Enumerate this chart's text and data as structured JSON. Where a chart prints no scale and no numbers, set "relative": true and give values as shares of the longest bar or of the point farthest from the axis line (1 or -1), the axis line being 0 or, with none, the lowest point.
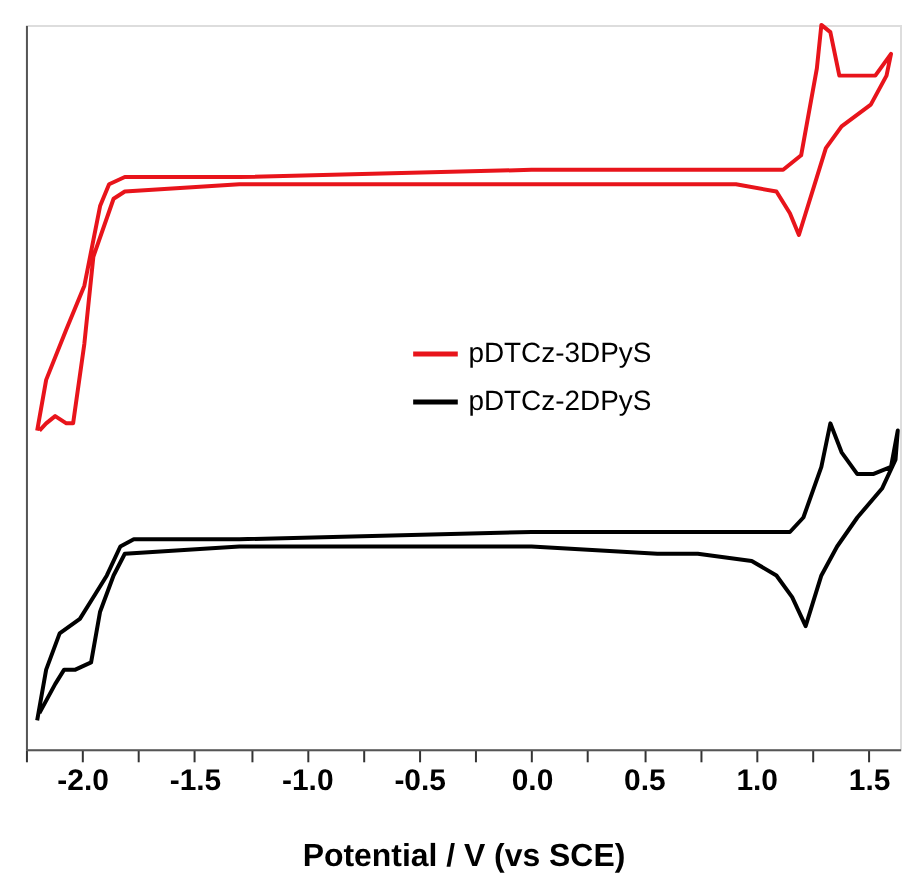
{
  "chart_data": {
    "type": "line",
    "relative": true,
    "xlabel": "Potential / V (vs SCE)",
    "xlim": [
      -2.25,
      1.64
    ],
    "xticks": [
      {
        "value": -2.25,
        "label": null
      },
      {
        "value": -2,
        "label": "-2.0"
      },
      {
        "value": -1.75,
        "label": null
      },
      -1.5,
      {
        "value": -1.25,
        "label": null
      },
      {
        "value": -1,
        "label": "-1.0"
      },
      {
        "value": -0.75,
        "label": null
      },
      -0.5,
      {
        "value": -0.25,
        "label": null
      },
      {
        "value": 0,
        "label": "0.0"
      },
      {
        "value": 0.25,
        "label": null
      },
      0.5,
      {
        "value": 0.75,
        "label": null
      },
      {
        "value": 1,
        "label": "1.0"
      },
      {
        "value": 1.25,
        "label": null
      },
      1.5
    ],
    "legend": "right",
    "grid": false,
    "marker": "none",
    "line_style": "solid",
    "series": [
      {
        "name": "pDTCz-3DPyS",
        "color": "#e8141b",
        "x": [
          -2.2,
          -2.16,
          -2.07,
          -1.99,
          -1.92,
          -1.88,
          -1.81,
          -1.3,
          0.0,
          0.56,
          1.12,
          1.2,
          1.27,
          1.29,
          1.33,
          1.37,
          1.45,
          1.53,
          1.6,
          1.58,
          1.51,
          1.38,
          1.31,
          1.27,
          1.22,
          1.19,
          1.15,
          1.09,
          0.91,
          0.56,
          0.0,
          -1.3,
          -1.81,
          -1.86,
          -1.95,
          -1.99,
          -2.04,
          -2.07,
          -2.12,
          -2.16,
          -2.19
        ],
        "values": [
          0.44,
          0.51,
          0.58,
          0.64,
          0.75,
          0.78,
          0.79,
          0.79,
          0.8,
          0.8,
          0.8,
          0.82,
          0.94,
          1.0,
          0.99,
          0.93,
          0.93,
          0.93,
          0.96,
          0.93,
          0.89,
          0.86,
          0.83,
          0.79,
          0.74,
          0.71,
          0.74,
          0.77,
          0.78,
          0.78,
          0.78,
          0.78,
          0.77,
          0.76,
          0.68,
          0.56,
          0.45,
          0.45,
          0.46,
          0.45,
          0.44
        ]
      },
      {
        "name": "pDTCz-2DPyS",
        "color": "#000000",
        "x": [
          -2.2,
          -2.16,
          -2.1,
          -2.01,
          -1.95,
          -1.89,
          -1.83,
          -1.77,
          -1.3,
          0.0,
          0.56,
          1.15,
          1.21,
          1.29,
          1.33,
          1.38,
          1.45,
          1.52,
          1.6,
          1.63,
          1.62,
          1.56,
          1.45,
          1.36,
          1.29,
          1.25,
          1.22,
          1.16,
          1.09,
          0.98,
          0.74,
          0.56,
          0.0,
          -1.3,
          -1.81,
          -1.86,
          -1.92,
          -1.96,
          -2.03,
          -2.08,
          -2.12,
          -2.19
        ],
        "values": [
          0.04,
          0.11,
          0.16,
          0.18,
          0.21,
          0.24,
          0.28,
          0.29,
          0.29,
          0.3,
          0.3,
          0.3,
          0.32,
          0.39,
          0.45,
          0.41,
          0.38,
          0.38,
          0.39,
          0.44,
          0.4,
          0.36,
          0.32,
          0.28,
          0.24,
          0.2,
          0.17,
          0.21,
          0.24,
          0.26,
          0.27,
          0.27,
          0.28,
          0.28,
          0.27,
          0.24,
          0.19,
          0.12,
          0.11,
          0.11,
          0.09,
          0.05
        ]
      }
    ]
  }
}
